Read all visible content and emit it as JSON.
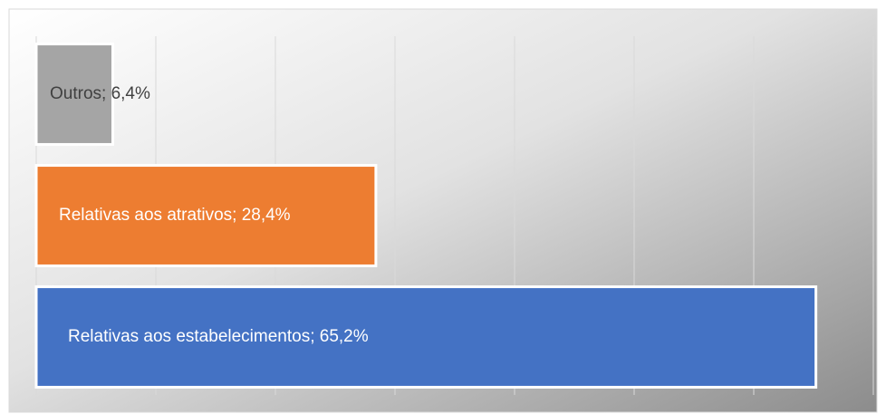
{
  "chart_data": {
    "type": "barh",
    "values": [
      6.4,
      28.4,
      65.2
    ],
    "value_labels": [
      "Outros; 6,4%",
      "Relativas aos atrativos; 28,4%",
      "Relativas aos estabelecimentos; 65,2%"
    ],
    "colors": [
      "#a5a5a5",
      "#ed7d31",
      "#4472c4"
    ],
    "label_colors": [
      "#404040",
      "#ffffff",
      "#ffffff"
    ],
    "xlim": [
      0,
      70
    ],
    "xticks": [
      0,
      10,
      20,
      30,
      40,
      50,
      60,
      70
    ],
    "grid": true
  }
}
